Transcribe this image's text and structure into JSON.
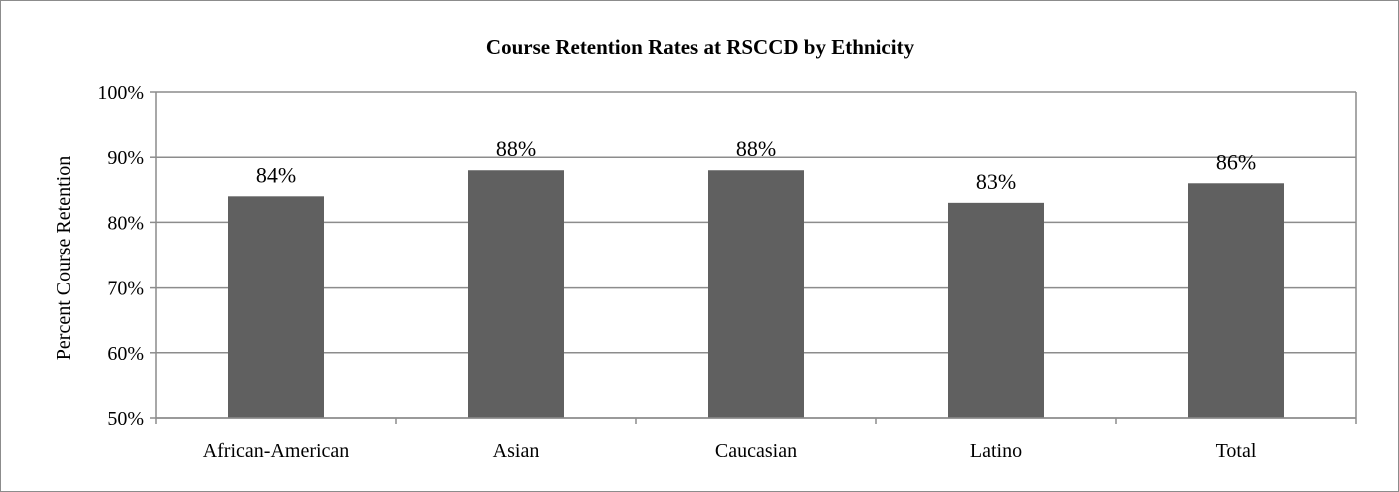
{
  "chart_data": {
    "type": "bar",
    "title": "Course Retention Rates at RSCCD by Ethnicity",
    "xlabel": "",
    "ylabel": "Percent Course Retention",
    "categories": [
      "African-American",
      "Asian",
      "Caucasian",
      "Latino",
      "Total"
    ],
    "values": [
      84,
      88,
      88,
      83,
      86
    ],
    "data_labels": [
      "84%",
      "88%",
      "88%",
      "83%",
      "86%"
    ],
    "ylim": [
      50,
      100
    ],
    "yticks": [
      50,
      60,
      70,
      80,
      90,
      100
    ],
    "ytick_labels": [
      "50%",
      "60%",
      "70%",
      "80%",
      "90%",
      "100%"
    ],
    "grid": true,
    "legend": "none",
    "bar_color": "#606060",
    "grid_color": "#8c8c8c"
  }
}
